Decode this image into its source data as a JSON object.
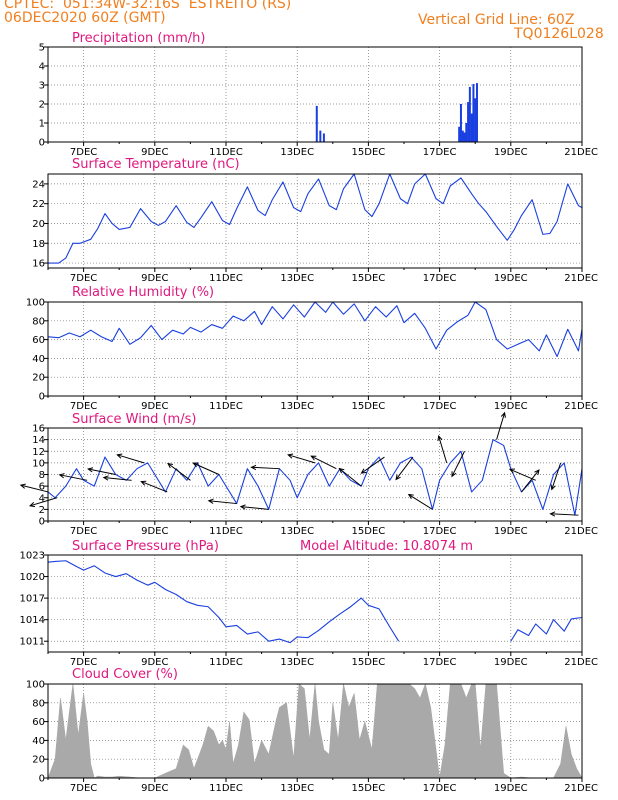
{
  "header": {
    "station_line": "CPTEC:  051:34W-32:16S  ESTREITO (RS)",
    "date_line": "06DEC2020 60Z (GMT)",
    "grid_line": "Vertical Grid Line: 60Z",
    "code_line": "TQ0126L028"
  },
  "colors": {
    "header": "#f07f1f",
    "title": "#e0187e",
    "series": "#1a3fe0",
    "cloud": "#a9a9a9"
  },
  "chart_data": [
    {
      "id": "precipitation",
      "type": "bar",
      "title": "Precipitation (mm/h)",
      "x_tick_labels": [
        "7DEC",
        "9DEC",
        "11DEC",
        "13DEC",
        "15DEC",
        "17DEC",
        "19DEC",
        "21DEC"
      ],
      "ylim": [
        0,
        5
      ],
      "y_ticks": [
        0,
        1,
        2,
        3,
        4,
        5
      ],
      "grid": true,
      "x": [
        13.55,
        13.65,
        13.75,
        17.55,
        17.6,
        17.65,
        17.7,
        17.75,
        17.8,
        17.85,
        17.9,
        17.95,
        18.0,
        18.05
      ],
      "values": [
        1.9,
        0.6,
        0.45,
        0.8,
        2.0,
        0.6,
        0.5,
        1.0,
        2.1,
        2.9,
        1.5,
        3.05,
        2.3,
        3.1
      ]
    },
    {
      "id": "temperature",
      "type": "line",
      "title": "Surface Temperature (nC)",
      "x_tick_labels": [
        "7DEC",
        "9DEC",
        "11DEC",
        "13DEC",
        "15DEC",
        "17DEC",
        "19DEC",
        "21DEC"
      ],
      "ylim": [
        15.5,
        25
      ],
      "y_ticks": [
        16,
        18,
        20,
        22,
        24
      ],
      "grid": true,
      "x": [
        6.0,
        6.3,
        6.5,
        6.7,
        6.9,
        7.2,
        7.4,
        7.6,
        7.8,
        8.0,
        8.3,
        8.6,
        8.9,
        9.1,
        9.3,
        9.6,
        9.9,
        10.1,
        10.3,
        10.6,
        10.9,
        11.1,
        11.3,
        11.6,
        11.9,
        12.1,
        12.3,
        12.6,
        12.9,
        13.1,
        13.3,
        13.6,
        13.9,
        14.1,
        14.3,
        14.6,
        14.9,
        15.1,
        15.3,
        15.6,
        15.9,
        16.1,
        16.3,
        16.6,
        16.9,
        17.1,
        17.3,
        17.6,
        17.9,
        18.1,
        18.3,
        18.6,
        18.9,
        19.1,
        19.3,
        19.6,
        19.9,
        20.1,
        20.3,
        20.6,
        20.9,
        21.0
      ],
      "values": [
        16.0,
        16.0,
        16.5,
        18.0,
        18.0,
        18.4,
        19.5,
        21.0,
        20.0,
        19.4,
        19.6,
        21.5,
        20.2,
        19.8,
        20.2,
        21.8,
        20.1,
        19.6,
        20.6,
        22.2,
        20.3,
        19.9,
        21.5,
        23.7,
        21.3,
        20.8,
        22.4,
        24.2,
        21.6,
        21.2,
        23.0,
        24.5,
        21.8,
        21.4,
        23.5,
        25.0,
        21.4,
        20.7,
        22.0,
        25.0,
        22.5,
        22.0,
        24.0,
        25.0,
        22.5,
        22.0,
        23.8,
        24.6,
        23.0,
        22.0,
        21.2,
        19.7,
        18.3,
        19.4,
        20.8,
        22.4,
        18.9,
        19.0,
        20.2,
        24.0,
        21.8,
        21.6
      ]
    },
    {
      "id": "humidity",
      "type": "line",
      "title": "Relative Humidity (%)",
      "x_tick_labels": [
        "7DEC",
        "9DEC",
        "11DEC",
        "13DEC",
        "15DEC",
        "17DEC",
        "19DEC",
        "21DEC"
      ],
      "ylim": [
        0,
        100
      ],
      "y_ticks": [
        0,
        20,
        40,
        60,
        80,
        100
      ],
      "grid": true,
      "x": [
        6.0,
        6.3,
        6.6,
        6.9,
        7.2,
        7.5,
        7.8,
        8.0,
        8.3,
        8.6,
        8.9,
        9.2,
        9.5,
        9.8,
        10.0,
        10.3,
        10.6,
        10.9,
        11.2,
        11.5,
        11.8,
        12.0,
        12.3,
        12.6,
        12.9,
        13.2,
        13.5,
        13.8,
        14.0,
        14.3,
        14.6,
        14.9,
        15.2,
        15.5,
        15.8,
        16.0,
        16.3,
        16.6,
        16.9,
        17.2,
        17.5,
        17.8,
        18.0,
        18.3,
        18.6,
        18.9,
        19.2,
        19.5,
        19.8,
        20.0,
        20.3,
        20.6,
        20.9,
        21.0
      ],
      "values": [
        63,
        62,
        67,
        63,
        70,
        63,
        58,
        72,
        55,
        62,
        75,
        60,
        70,
        66,
        73,
        68,
        76,
        72,
        85,
        80,
        90,
        76,
        95,
        82,
        97,
        84,
        100,
        89,
        100,
        87,
        98,
        80,
        95,
        84,
        96,
        78,
        88,
        72,
        50,
        70,
        79,
        86,
        100,
        92,
        60,
        50,
        55,
        60,
        48,
        65,
        42,
        71,
        48,
        71
      ]
    },
    {
      "id": "wind",
      "type": "line",
      "title": "Surface Wind (m/s)",
      "x_tick_labels": [
        "7DEC",
        "9DEC",
        "11DEC",
        "13DEC",
        "15DEC",
        "17DEC",
        "19DEC",
        "21DEC"
      ],
      "ylim": [
        0,
        16
      ],
      "y_ticks": [
        0,
        2,
        4,
        6,
        8,
        10,
        12,
        14,
        16
      ],
      "grid": true,
      "x": [
        6.0,
        6.2,
        6.5,
        6.8,
        7.0,
        7.3,
        7.6,
        7.9,
        8.2,
        8.5,
        8.8,
        9.0,
        9.3,
        9.6,
        9.9,
        10.2,
        10.5,
        10.8,
        11.0,
        11.3,
        11.6,
        11.9,
        12.2,
        12.5,
        12.8,
        13.0,
        13.3,
        13.6,
        13.9,
        14.2,
        14.5,
        14.8,
        15.0,
        15.3,
        15.6,
        15.9,
        16.2,
        16.5,
        16.8,
        17.0,
        17.3,
        17.6,
        17.9,
        18.2,
        18.5,
        18.8,
        19.0,
        19.3,
        19.6,
        19.9,
        20.2,
        20.5,
        20.8,
        21.0
      ],
      "values": [
        5,
        4,
        6,
        9,
        7,
        6,
        11,
        8,
        7,
        9,
        10,
        8,
        5,
        9,
        7,
        10,
        6,
        8,
        6,
        3,
        9,
        6,
        2,
        9,
        7,
        4,
        8,
        10,
        6,
        9,
        7,
        6,
        9,
        11,
        7,
        10,
        11,
        9,
        2,
        7,
        10,
        12,
        5,
        7,
        14,
        13,
        9,
        5,
        7,
        2,
        8,
        10,
        1,
        9
      ],
      "barbs": [
        {
          "x": 6.0,
          "u": -1.0,
          "v": 0.25
        },
        {
          "x": 6.25,
          "u": -1.0,
          "v": -0.3
        },
        {
          "x": 7.1,
          "u": -1.0,
          "v": 0.2
        },
        {
          "x": 7.9,
          "u": -1.0,
          "v": 0.2
        },
        {
          "x": 8.35,
          "u": -1.0,
          "v": 0.1
        },
        {
          "x": 8.7,
          "u": -1.0,
          "v": 0.3
        },
        {
          "x": 9.35,
          "u": -1.0,
          "v": 0.4
        },
        {
          "x": 10.0,
          "u": -0.8,
          "v": 0.6
        },
        {
          "x": 10.8,
          "u": -0.9,
          "v": 0.4
        },
        {
          "x": 11.3,
          "u": -1.0,
          "v": 0.1
        },
        {
          "x": 12.2,
          "u": -1.0,
          "v": 0.1
        },
        {
          "x": 12.5,
          "u": -1.0,
          "v": 0.05
        },
        {
          "x": 13.5,
          "u": -1.0,
          "v": 0.3
        },
        {
          "x": 14.1,
          "u": -1.0,
          "v": 0.5
        },
        {
          "x": 14.8,
          "u": -1.0,
          "v": 0.8
        },
        {
          "x": 15.45,
          "u": -1.0,
          "v": -0.7
        },
        {
          "x": 16.25,
          "u": -0.6,
          "v": -0.8
        },
        {
          "x": 16.8,
          "u": -0.8,
          "v": 0.5
        },
        {
          "x": 17.2,
          "u": -0.3,
          "v": 1.0
        },
        {
          "x": 17.7,
          "u": -0.5,
          "v": -1.0
        },
        {
          "x": 18.6,
          "u": 0.3,
          "v": 1.0
        },
        {
          "x": 19.3,
          "u": 0.8,
          "v": 1.0
        },
        {
          "x": 19.7,
          "u": -0.7,
          "v": 0.3
        },
        {
          "x": 20.9,
          "u": -1.0,
          "v": 0.05
        },
        {
          "x": 20.4,
          "u": -0.3,
          "v": -0.9
        }
      ]
    },
    {
      "id": "pressure",
      "type": "line",
      "title": "Surface Pressure (hPa)",
      "subtitle": "Model Altitude: 10.8074 m",
      "x_tick_labels": [
        "7DEC",
        "9DEC",
        "11DEC",
        "13DEC",
        "15DEC",
        "17DEC",
        "19DEC",
        "21DEC"
      ],
      "ylim": [
        1009.5,
        1023
      ],
      "y_ticks": [
        1011,
        1014,
        1017,
        1020,
        1023
      ],
      "grid": true,
      "segments": [
        {
          "x": [
            6.0,
            6.2,
            6.5,
            6.8,
            7.0,
            7.3,
            7.6,
            7.9,
            8.2,
            8.5,
            8.8,
            9.0,
            9.3,
            9.6,
            9.9,
            10.2,
            10.5,
            10.8,
            11.0,
            11.3,
            11.6,
            11.9,
            12.2,
            12.5,
            12.8,
            13.0,
            13.3,
            13.6,
            13.9,
            14.2,
            14.5,
            14.8,
            15.0,
            15.3,
            15.6,
            15.85
          ],
          "values": [
            1022.0,
            1022.1,
            1022.2,
            1021.4,
            1020.9,
            1021.5,
            1020.5,
            1020.0,
            1020.4,
            1019.5,
            1018.8,
            1019.2,
            1018.2,
            1017.5,
            1016.5,
            1016.0,
            1015.8,
            1014.3,
            1013.0,
            1013.2,
            1012.0,
            1012.3,
            1011.0,
            1011.3,
            1010.8,
            1011.6,
            1011.5,
            1012.5,
            1013.7,
            1014.8,
            1015.8,
            1017.0,
            1016.0,
            1015.5,
            1013.0,
            1011.0
          ]
        },
        {
          "x": [
            19.0,
            19.2,
            19.5,
            19.7,
            20.0,
            20.2,
            20.5,
            20.7,
            21.0
          ],
          "values": [
            1011.0,
            1012.6,
            1011.8,
            1013.4,
            1012.0,
            1014.0,
            1012.4,
            1014.1,
            1014.3
          ]
        }
      ]
    },
    {
      "id": "cloud",
      "type": "area",
      "title": "Cloud Cover (%)",
      "x_tick_labels": [
        "7DEC",
        "9DEC",
        "11DEC",
        "13DEC",
        "15DEC",
        "17DEC",
        "19DEC",
        "21DEC"
      ],
      "ylim": [
        0,
        100
      ],
      "y_ticks": [
        0,
        20,
        40,
        60,
        80,
        100
      ],
      "grid": true,
      "x": [
        6.0,
        6.2,
        6.35,
        6.5,
        6.7,
        6.85,
        7.0,
        7.1,
        7.2,
        7.3,
        7.4,
        7.6,
        7.8,
        8.0,
        8.3,
        8.6,
        9.0,
        9.3,
        9.6,
        9.8,
        9.95,
        10.1,
        10.2,
        10.35,
        10.5,
        10.65,
        10.8,
        10.9,
        11.0,
        11.1,
        11.2,
        11.35,
        11.5,
        11.65,
        11.8,
        12.0,
        12.2,
        12.4,
        12.5,
        12.7,
        12.9,
        13.05,
        13.2,
        13.35,
        13.5,
        13.6,
        13.75,
        13.9,
        14.0,
        14.15,
        14.3,
        14.45,
        14.6,
        14.75,
        14.9,
        15.0,
        15.1,
        15.25,
        15.4,
        15.55,
        15.7,
        15.85,
        16.0,
        16.15,
        16.3,
        16.45,
        16.6,
        16.75,
        16.9,
        17.0,
        17.15,
        17.3,
        17.45,
        17.6,
        17.75,
        17.9,
        18.0,
        18.15,
        18.3,
        18.45,
        18.6,
        18.8,
        19.0,
        19.3,
        19.6,
        19.9,
        20.2,
        20.4,
        20.55,
        20.7,
        20.85,
        21.0
      ],
      "values": [
        0,
        20,
        85,
        40,
        100,
        45,
        90,
        60,
        15,
        0,
        2,
        1,
        1,
        2,
        1,
        0,
        0,
        5,
        10,
        35,
        30,
        10,
        20,
        35,
        55,
        50,
        35,
        40,
        30,
        60,
        15,
        35,
        70,
        62,
        15,
        40,
        25,
        60,
        75,
        80,
        20,
        100,
        95,
        40,
        100,
        60,
        30,
        25,
        80,
        40,
        100,
        75,
        90,
        40,
        60,
        45,
        30,
        100,
        100,
        100,
        100,
        100,
        100,
        100,
        95,
        85,
        100,
        75,
        30,
        0,
        35,
        100,
        100,
        100,
        85,
        100,
        100,
        30,
        100,
        100,
        100,
        5,
        0,
        1,
        0,
        0,
        0,
        15,
        55,
        25,
        10,
        0
      ]
    }
  ]
}
